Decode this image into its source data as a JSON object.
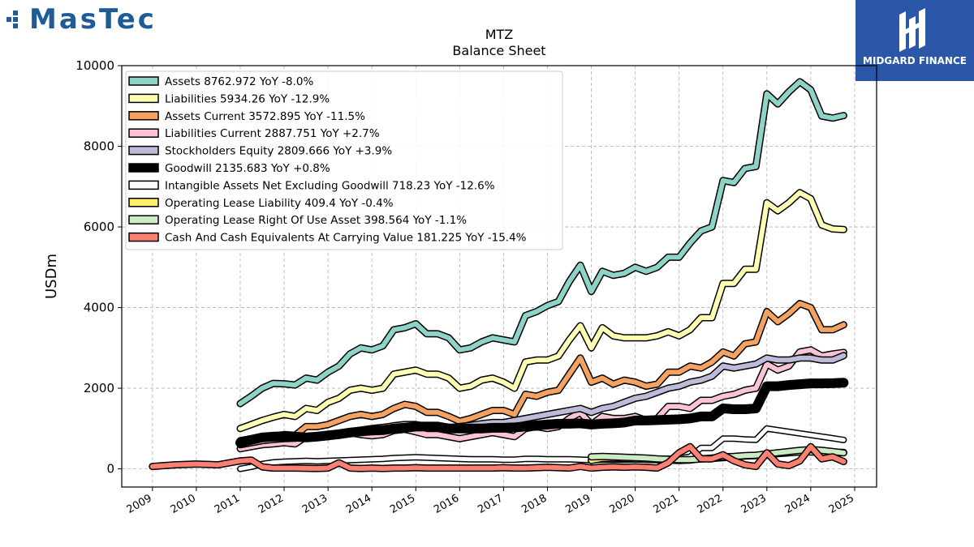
{
  "logos": {
    "left": "MasTec",
    "right": "MIDGARD FINANCE"
  },
  "chart_data": {
    "type": "line",
    "title": "MTZ",
    "subtitle": "Balance  Sheet",
    "ylabel": "USDm",
    "xlabel": "",
    "xlim": [
      2008.3,
      2025.5
    ],
    "ylim": [
      -450,
      10000
    ],
    "yticks": [
      0,
      2000,
      4000,
      6000,
      8000,
      10000
    ],
    "xticks": [
      "2009",
      "2010",
      "2011",
      "2012",
      "2013",
      "2014",
      "2015",
      "2016",
      "2017",
      "2018",
      "2019",
      "2020",
      "2021",
      "2022",
      "2023",
      "2024",
      "2025"
    ],
    "grid": true,
    "legend_position": "top-left",
    "series": [
      {
        "name": "Assets  8762.972 YoY -8.0%",
        "color": "#8dd3c7",
        "width": 6,
        "x": [
          2011.0,
          2011.25,
          2011.5,
          2011.75,
          2012.0,
          2012.25,
          2012.5,
          2012.75,
          2013.0,
          2013.25,
          2013.5,
          2013.75,
          2014.0,
          2014.25,
          2014.5,
          2014.75,
          2015.0,
          2015.25,
          2015.5,
          2015.75,
          2016.0,
          2016.25,
          2016.5,
          2016.75,
          2017.0,
          2017.25,
          2017.5,
          2017.75,
          2018.0,
          2018.25,
          2018.5,
          2018.75,
          2019.0,
          2019.25,
          2019.5,
          2019.75,
          2020.0,
          2020.25,
          2020.5,
          2020.75,
          2021.0,
          2021.25,
          2021.5,
          2021.75,
          2022.0,
          2022.25,
          2022.5,
          2022.75,
          2023.0,
          2023.25,
          2023.5,
          2023.75,
          2024.0,
          2024.25,
          2024.5,
          2024.75
        ],
        "y": [
          1620,
          1800,
          2000,
          2120,
          2110,
          2080,
          2250,
          2200,
          2400,
          2550,
          2850,
          3000,
          2950,
          3050,
          3450,
          3500,
          3600,
          3350,
          3350,
          3250,
          2950,
          3000,
          3150,
          3250,
          3200,
          3150,
          3800,
          3900,
          4050,
          4150,
          4650,
          5050,
          4400,
          4900,
          4800,
          4850,
          5000,
          4900,
          5000,
          5250,
          5250,
          5600,
          5900,
          6000,
          7150,
          7100,
          7450,
          7500,
          9300,
          9050,
          9350,
          9600,
          9400,
          8750,
          8700,
          8763
        ]
      },
      {
        "name": "Liabilities  5934.26 YoY -12.9%",
        "color": "#ffffb3",
        "width": 6,
        "x": [
          2011.0,
          2011.25,
          2011.5,
          2011.75,
          2012.0,
          2012.25,
          2012.5,
          2012.75,
          2013.0,
          2013.25,
          2013.5,
          2013.75,
          2014.0,
          2014.25,
          2014.5,
          2014.75,
          2015.0,
          2015.25,
          2015.5,
          2015.75,
          2016.0,
          2016.25,
          2016.5,
          2016.75,
          2017.0,
          2017.25,
          2017.5,
          2017.75,
          2018.0,
          2018.25,
          2018.5,
          2018.75,
          2019.0,
          2019.25,
          2019.5,
          2019.75,
          2020.0,
          2020.25,
          2020.5,
          2020.75,
          2021.0,
          2021.25,
          2021.5,
          2021.75,
          2022.0,
          2022.25,
          2022.5,
          2022.75,
          2023.0,
          2023.25,
          2023.5,
          2023.75,
          2024.0,
          2024.25,
          2024.5,
          2024.75
        ],
        "y": [
          1000,
          1100,
          1200,
          1280,
          1350,
          1300,
          1500,
          1450,
          1650,
          1750,
          1950,
          2000,
          1950,
          2000,
          2350,
          2400,
          2450,
          2350,
          2350,
          2250,
          2000,
          2050,
          2200,
          2250,
          2150,
          2000,
          2650,
          2700,
          2700,
          2800,
          3200,
          3550,
          3000,
          3500,
          3300,
          3250,
          3250,
          3250,
          3300,
          3400,
          3300,
          3450,
          3750,
          3750,
          4600,
          4600,
          4950,
          4950,
          6600,
          6400,
          6600,
          6850,
          6700,
          6050,
          5950,
          5934
        ]
      },
      {
        "name": "Assets Current  3572.895 YoY -11.5%",
        "color": "#f4a261",
        "width": 6,
        "x": [
          2011.0,
          2011.25,
          2011.5,
          2011.75,
          2012.0,
          2012.25,
          2012.5,
          2012.75,
          2013.0,
          2013.25,
          2013.5,
          2013.75,
          2014.0,
          2014.25,
          2014.5,
          2014.75,
          2015.0,
          2015.25,
          2015.5,
          2015.75,
          2016.0,
          2016.25,
          2016.5,
          2016.75,
          2017.0,
          2017.25,
          2017.5,
          2017.75,
          2018.0,
          2018.25,
          2018.5,
          2018.75,
          2019.0,
          2019.25,
          2019.5,
          2019.75,
          2020.0,
          2020.25,
          2020.5,
          2020.75,
          2021.0,
          2021.25,
          2021.5,
          2021.75,
          2022.0,
          2022.25,
          2022.5,
          2022.75,
          2023.0,
          2023.25,
          2023.5,
          2023.75,
          2024.0,
          2024.25,
          2024.5,
          2024.75
        ],
        "y": [
          700,
          750,
          800,
          820,
          850,
          830,
          1050,
          1050,
          1100,
          1200,
          1300,
          1350,
          1300,
          1350,
          1500,
          1600,
          1550,
          1400,
          1400,
          1300,
          1180,
          1250,
          1350,
          1450,
          1450,
          1350,
          1850,
          1800,
          1900,
          1950,
          2350,
          2750,
          2150,
          2250,
          2100,
          2200,
          2150,
          2050,
          2100,
          2400,
          2400,
          2550,
          2500,
          2650,
          2900,
          2800,
          3100,
          3150,
          3900,
          3650,
          3850,
          4100,
          4000,
          3450,
          3450,
          3573
        ]
      },
      {
        "name": "Liabilities Current  2887.751 YoY +2.7%",
        "color": "#fbc4d6",
        "width": 6,
        "x": [
          2011.0,
          2011.25,
          2011.5,
          2011.75,
          2012.0,
          2012.25,
          2012.5,
          2012.75,
          2013.0,
          2013.25,
          2013.5,
          2013.75,
          2014.0,
          2014.25,
          2014.5,
          2014.75,
          2015.0,
          2015.25,
          2015.5,
          2015.75,
          2016.0,
          2016.25,
          2016.5,
          2016.75,
          2017.0,
          2017.25,
          2017.5,
          2017.75,
          2018.0,
          2018.25,
          2018.5,
          2018.75,
          2019.0,
          2019.25,
          2019.5,
          2019.75,
          2020.0,
          2020.25,
          2020.5,
          2020.75,
          2021.0,
          2021.25,
          2021.5,
          2021.75,
          2022.0,
          2022.25,
          2022.5,
          2022.75,
          2023.0,
          2023.25,
          2023.5,
          2023.75,
          2024.0,
          2024.25,
          2024.5,
          2024.75
        ],
        "y": [
          500,
          550,
          600,
          620,
          650,
          620,
          800,
          780,
          850,
          850,
          900,
          850,
          820,
          850,
          950,
          980,
          920,
          850,
          850,
          800,
          750,
          800,
          850,
          900,
          850,
          800,
          1000,
          1050,
          1000,
          1050,
          1250,
          1400,
          1100,
          1300,
          1250,
          1250,
          1300,
          1200,
          1250,
          1550,
          1550,
          1500,
          1700,
          1700,
          1800,
          1850,
          1950,
          2000,
          2600,
          2450,
          2550,
          2900,
          2950,
          2800,
          2850,
          2888
        ]
      },
      {
        "name": "Stockholders Equity  2809.666 YoY +3.9%",
        "color": "#bebada",
        "width": 6,
        "x": [
          2011.0,
          2011.25,
          2011.5,
          2011.75,
          2012.0,
          2012.25,
          2012.5,
          2012.75,
          2013.0,
          2013.25,
          2013.5,
          2013.75,
          2014.0,
          2014.25,
          2014.5,
          2014.75,
          2015.0,
          2015.25,
          2015.5,
          2015.75,
          2016.0,
          2016.25,
          2016.5,
          2016.75,
          2017.0,
          2017.25,
          2017.5,
          2017.75,
          2018.0,
          2018.25,
          2018.5,
          2018.75,
          2019.0,
          2019.25,
          2019.5,
          2019.75,
          2020.0,
          2020.25,
          2020.5,
          2020.75,
          2021.0,
          2021.25,
          2021.5,
          2021.75,
          2022.0,
          2022.25,
          2022.5,
          2022.75,
          2023.0,
          2023.25,
          2023.5,
          2023.75,
          2024.0,
          2024.25,
          2024.5,
          2024.75
        ],
        "y": [
          600,
          650,
          700,
          730,
          750,
          760,
          780,
          780,
          800,
          850,
          900,
          960,
          1000,
          1030,
          1070,
          1100,
          1100,
          1050,
          1050,
          1020,
          1050,
          1080,
          1120,
          1150,
          1150,
          1200,
          1250,
          1300,
          1350,
          1400,
          1450,
          1500,
          1400,
          1500,
          1550,
          1650,
          1750,
          1800,
          1900,
          2000,
          2050,
          2150,
          2200,
          2300,
          2550,
          2500,
          2550,
          2600,
          2750,
          2700,
          2700,
          2750,
          2750,
          2700,
          2700,
          2810
        ]
      },
      {
        "name": "Goodwill  2135.683 YoY +0.8%",
        "color": "#000000",
        "width": 9,
        "x": [
          2011.0,
          2011.25,
          2011.5,
          2011.75,
          2012.0,
          2012.25,
          2012.5,
          2012.75,
          2013.0,
          2013.25,
          2013.5,
          2013.75,
          2014.0,
          2014.25,
          2014.5,
          2014.75,
          2015.0,
          2015.25,
          2015.5,
          2015.75,
          2016.0,
          2016.25,
          2016.5,
          2016.75,
          2017.0,
          2017.25,
          2017.5,
          2017.75,
          2018.0,
          2018.25,
          2018.5,
          2018.75,
          2019.0,
          2019.25,
          2019.5,
          2019.75,
          2020.0,
          2020.25,
          2020.5,
          2020.75,
          2021.0,
          2021.25,
          2021.5,
          2021.75,
          2022.0,
          2022.25,
          2022.5,
          2022.75,
          2023.0,
          2023.25,
          2023.5,
          2023.75,
          2024.0,
          2024.25,
          2024.5,
          2024.75
        ],
        "y": [
          650,
          720,
          780,
          800,
          800,
          800,
          780,
          800,
          830,
          860,
          900,
          930,
          950,
          960,
          1000,
          1020,
          1050,
          1050,
          1050,
          1000,
          1000,
          1000,
          1000,
          1020,
          1020,
          1030,
          1050,
          1080,
          1100,
          1120,
          1120,
          1130,
          1100,
          1120,
          1130,
          1150,
          1200,
          1200,
          1210,
          1220,
          1230,
          1250,
          1300,
          1300,
          1500,
          1480,
          1480,
          1500,
          2050,
          2050,
          2080,
          2100,
          2120,
          2120,
          2125,
          2136
        ]
      },
      {
        "name": "Intangible Assets Net Excluding Goodwill  718.23 YoY -12.6%",
        "color": "#ffffff",
        "width": 5,
        "x": [
          2011.0,
          2011.25,
          2011.5,
          2011.75,
          2012.0,
          2012.25,
          2012.5,
          2012.75,
          2013.0,
          2013.25,
          2013.5,
          2013.75,
          2014.0,
          2014.25,
          2014.5,
          2014.75,
          2015.0,
          2015.25,
          2015.5,
          2015.75,
          2016.0,
          2016.25,
          2016.5,
          2016.75,
          2017.0,
          2017.25,
          2017.5,
          2017.75,
          2018.0,
          2018.25,
          2018.5,
          2018.75,
          2019.0,
          2019.25,
          2019.5,
          2019.75,
          2020.0,
          2020.25,
          2020.5,
          2020.75,
          2021.0,
          2021.25,
          2021.5,
          2021.75,
          2022.0,
          2022.25,
          2022.5,
          2022.75,
          2023.0,
          2023.25,
          2023.5,
          2023.75,
          2024.0,
          2024.25,
          2024.5,
          2024.75
        ],
        "y": [
          0,
          50,
          120,
          160,
          180,
          190,
          200,
          190,
          200,
          210,
          220,
          230,
          240,
          250,
          270,
          280,
          290,
          280,
          270,
          260,
          250,
          240,
          240,
          240,
          230,
          230,
          250,
          250,
          240,
          240,
          240,
          230,
          220,
          230,
          230,
          230,
          240,
          240,
          250,
          250,
          260,
          300,
          520,
          520,
          750,
          750,
          730,
          720,
          1000,
          960,
          920,
          880,
          840,
          800,
          760,
          718
        ]
      },
      {
        "name": "Operating Lease Liability  409.4 YoY -0.4%",
        "color": "#ffed6f",
        "width": 6,
        "x": [
          2019.0,
          2019.25,
          2019.5,
          2019.75,
          2020.0,
          2020.25,
          2020.5,
          2020.75,
          2021.0,
          2021.25,
          2021.5,
          2021.75,
          2022.0,
          2022.25,
          2022.5,
          2022.75,
          2023.0,
          2023.25,
          2023.5,
          2023.75,
          2024.0,
          2024.25,
          2024.5,
          2024.75
        ],
        "y": [
          210,
          260,
          270,
          260,
          250,
          240,
          230,
          220,
          210,
          220,
          250,
          260,
          280,
          300,
          320,
          330,
          360,
          380,
          400,
          420,
          420,
          410,
          410,
          409
        ]
      },
      {
        "name": "Operating Lease Right Of Use Asset  398.564 YoY -1.1%",
        "color": "#ccebc5",
        "width": 6,
        "x": [
          2019.0,
          2019.25,
          2019.5,
          2019.75,
          2020.0,
          2020.25,
          2020.5,
          2020.75,
          2021.0,
          2021.25,
          2021.5,
          2021.75,
          2022.0,
          2022.25,
          2022.5,
          2022.75,
          2023.0,
          2023.25,
          2023.5,
          2023.75,
          2024.0,
          2024.25,
          2024.5,
          2024.75
        ],
        "y": [
          300,
          310,
          300,
          290,
          280,
          270,
          250,
          240,
          230,
          230,
          250,
          270,
          300,
          310,
          330,
          340,
          370,
          400,
          430,
          460,
          480,
          460,
          430,
          399
        ]
      },
      {
        "name": "Cash And Cash Equivalents At Carrying Value  181.225 YoY -15.4%",
        "color": "#fb8072",
        "width": 6,
        "x": [
          2009.0,
          2009.5,
          2010.0,
          2010.5,
          2011.0,
          2011.25,
          2011.5,
          2011.75,
          2012.0,
          2012.25,
          2012.5,
          2012.75,
          2013.0,
          2013.25,
          2013.5,
          2013.75,
          2014.0,
          2014.25,
          2014.5,
          2014.75,
          2015.0,
          2015.25,
          2015.5,
          2015.75,
          2016.0,
          2016.25,
          2016.5,
          2016.75,
          2017.0,
          2017.25,
          2017.5,
          2017.75,
          2018.0,
          2018.25,
          2018.5,
          2018.75,
          2019.0,
          2019.25,
          2019.5,
          2019.75,
          2020.0,
          2020.25,
          2020.5,
          2020.75,
          2021.0,
          2021.25,
          2021.5,
          2021.75,
          2022.0,
          2022.25,
          2022.5,
          2022.75,
          2023.0,
          2023.25,
          2023.5,
          2023.75,
          2024.0,
          2024.25,
          2024.5,
          2024.75
        ],
        "y": [
          60,
          100,
          120,
          100,
          200,
          220,
          50,
          20,
          20,
          20,
          15,
          10,
          20,
          150,
          20,
          10,
          20,
          10,
          20,
          20,
          30,
          20,
          20,
          20,
          20,
          20,
          20,
          20,
          30,
          20,
          20,
          30,
          40,
          30,
          20,
          60,
          20,
          40,
          50,
          40,
          50,
          40,
          20,
          150,
          400,
          550,
          250,
          250,
          350,
          200,
          100,
          60,
          400,
          120,
          80,
          200,
          550,
          250,
          300,
          181
        ]
      }
    ]
  }
}
